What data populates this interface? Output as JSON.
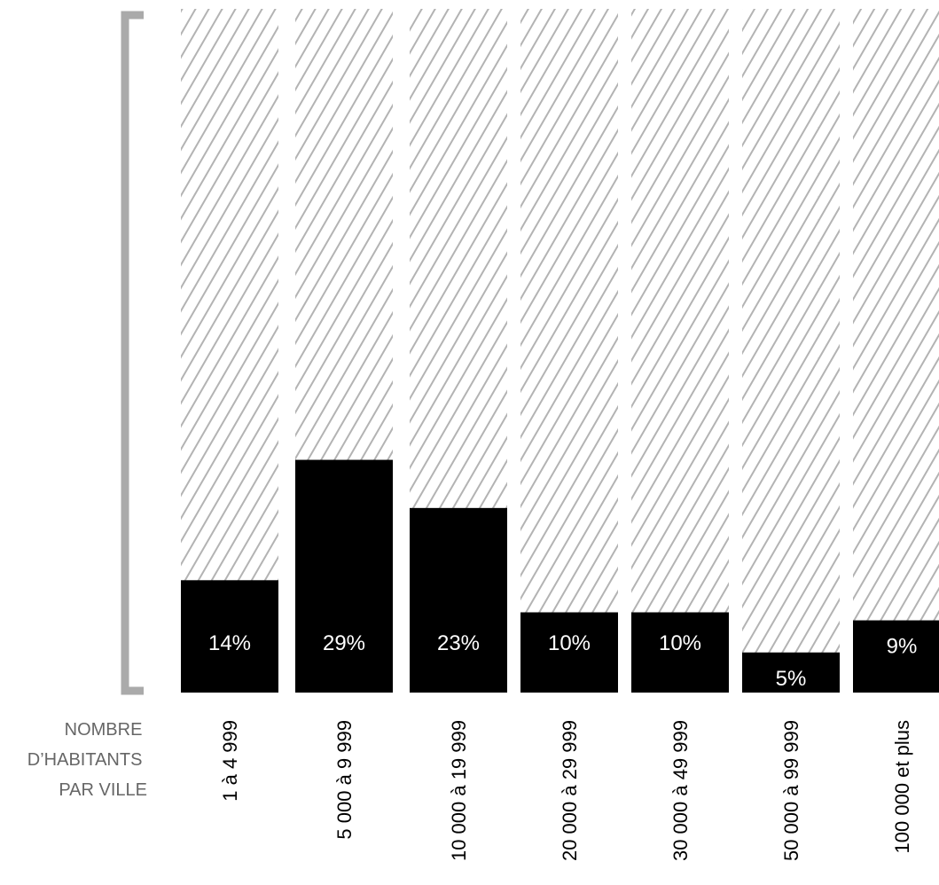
{
  "chart_data": {
    "type": "bar",
    "categories": [
      "1 à 4 999",
      "5 000 à 9 999",
      "10 000 à 19 999",
      "20 000 à 29 999",
      "30 000 à 49 999",
      "50 000 à 99 999",
      "100 000 et plus"
    ],
    "values": [
      14,
      29,
      23,
      10,
      10,
      5,
      9
    ],
    "value_labels": [
      "14%",
      "29%",
      "23%",
      "10%",
      "10%",
      "5%",
      "9%"
    ],
    "ylim": [
      0,
      100
    ],
    "x_axis_title_lines": [
      "NOMBRE",
      "D’HABITANTS",
      "PAR VILLE"
    ],
    "grid": false,
    "legend": "none",
    "colors": {
      "bar": "#000000",
      "hatch_line": "#b3b3b3",
      "bracket": "#aaaaaa",
      "value_label": "#ffffff",
      "axis_title": "#666666",
      "category_label": "#000000"
    }
  }
}
